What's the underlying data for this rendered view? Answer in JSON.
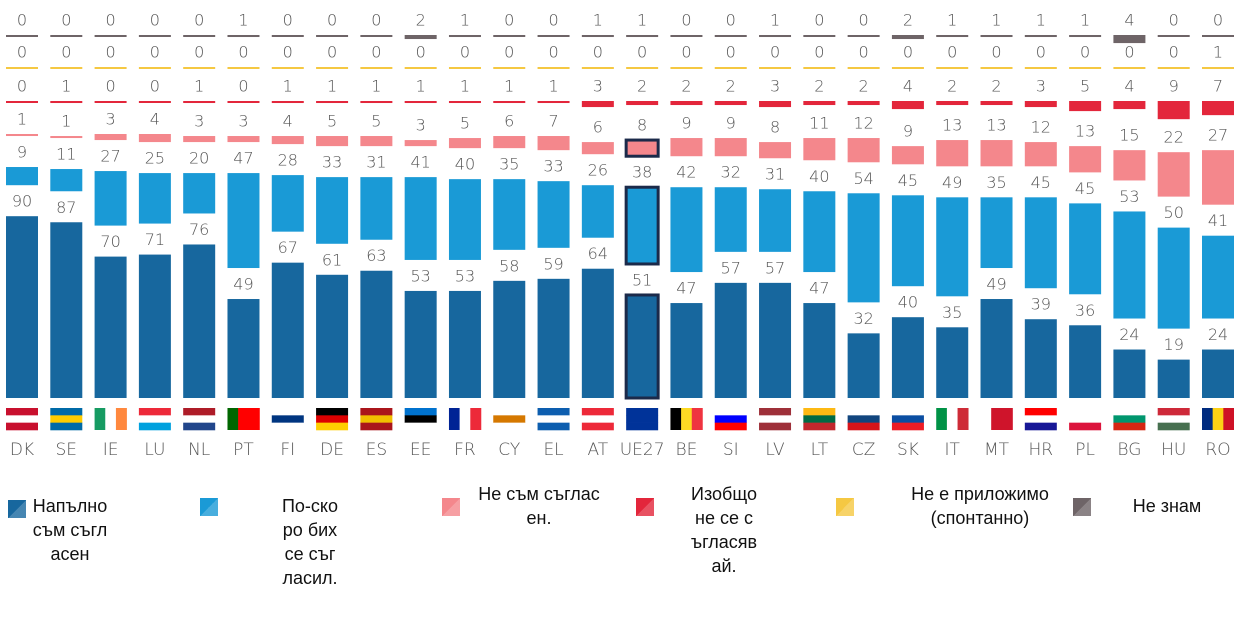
{
  "chart_data": {
    "type": "bar",
    "categories": [
      "DK",
      "SE",
      "IE",
      "LU",
      "NL",
      "PT",
      "FI",
      "DE",
      "ES",
      "EE",
      "FR",
      "CY",
      "EL",
      "AT",
      "UE27",
      "BE",
      "SI",
      "LV",
      "LT",
      "CZ",
      "SK",
      "IT",
      "MT",
      "HR",
      "PL",
      "BG",
      "HU",
      "RO"
    ],
    "highlight": "UE27",
    "series": [
      {
        "name": "Напълно съм съгласен",
        "color": "#17679e",
        "values": [
          90,
          87,
          70,
          71,
          76,
          49,
          67,
          61,
          63,
          53,
          53,
          58,
          59,
          64,
          51,
          47,
          57,
          57,
          47,
          32,
          40,
          35,
          49,
          39,
          36,
          24,
          19,
          24
        ]
      },
      {
        "name": "По-скоро бих се съгласил.",
        "color": "#1a9ad6",
        "values": [
          9,
          11,
          27,
          25,
          20,
          47,
          28,
          33,
          31,
          41,
          40,
          35,
          33,
          26,
          38,
          42,
          32,
          31,
          40,
          54,
          45,
          49,
          35,
          45,
          45,
          53,
          50,
          41
        ]
      },
      {
        "name": "Не съм съгласен.",
        "color": "#f4878c",
        "values": [
          1,
          1,
          3,
          4,
          3,
          3,
          4,
          5,
          5,
          3,
          5,
          6,
          7,
          6,
          8,
          9,
          9,
          8,
          11,
          12,
          9,
          13,
          13,
          12,
          13,
          15,
          22,
          27
        ]
      },
      {
        "name": "Изобщо не се съгласявай.",
        "color": "#e3263b",
        "values": [
          0,
          1,
          0,
          0,
          1,
          0,
          1,
          1,
          1,
          1,
          1,
          1,
          1,
          3,
          2,
          2,
          2,
          3,
          2,
          2,
          4,
          2,
          2,
          3,
          5,
          4,
          9,
          7
        ]
      },
      {
        "name": "Не е приложимо (спонтанно)",
        "color": "#f5c842",
        "values": [
          0,
          0,
          0,
          0,
          0,
          0,
          0,
          0,
          0,
          0,
          0,
          0,
          0,
          0,
          0,
          0,
          0,
          0,
          0,
          0,
          0,
          0,
          0,
          0,
          0,
          0,
          0,
          1
        ]
      },
      {
        "name": "Не знам",
        "color": "#6e6467",
        "values": [
          0,
          0,
          0,
          0,
          0,
          1,
          0,
          0,
          0,
          2,
          1,
          0,
          0,
          1,
          1,
          0,
          0,
          1,
          0,
          0,
          2,
          1,
          1,
          1,
          1,
          4,
          0,
          0
        ]
      }
    ]
  }
}
